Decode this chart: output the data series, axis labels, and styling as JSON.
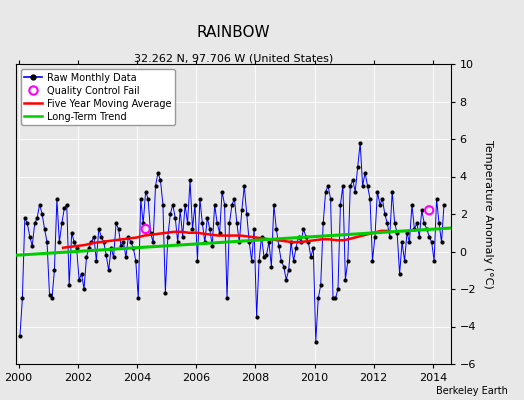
{
  "title": "RAINBOW",
  "subtitle": "32.262 N, 97.706 W (United States)",
  "ylabel": "Temperature Anomaly (°C)",
  "attribution": "Berkeley Earth",
  "xlim": [
    1999.9,
    2014.6
  ],
  "ylim": [
    -6,
    10
  ],
  "yticks": [
    -6,
    -4,
    -2,
    0,
    2,
    4,
    6,
    8,
    10
  ],
  "xticks": [
    2000,
    2002,
    2004,
    2006,
    2008,
    2010,
    2012,
    2014
  ],
  "bg_color": "#e8e8e8",
  "raw_color": "#0000ff",
  "ma_color": "#ff0000",
  "trend_color": "#00cc00",
  "qc_color": "#ff00ff",
  "title_fontsize": 11,
  "subtitle_fontsize": 8,
  "raw_monthly_data": [
    [
      2000.042,
      -4.5
    ],
    [
      2000.125,
      -2.5
    ],
    [
      2000.208,
      1.8
    ],
    [
      2000.292,
      1.5
    ],
    [
      2000.375,
      0.8
    ],
    [
      2000.458,
      0.3
    ],
    [
      2000.542,
      1.5
    ],
    [
      2000.625,
      1.8
    ],
    [
      2000.708,
      2.5
    ],
    [
      2000.792,
      2.0
    ],
    [
      2000.875,
      1.2
    ],
    [
      2000.958,
      0.5
    ],
    [
      2001.042,
      -2.3
    ],
    [
      2001.125,
      -2.5
    ],
    [
      2001.208,
      -1.0
    ],
    [
      2001.292,
      2.8
    ],
    [
      2001.375,
      0.5
    ],
    [
      2001.458,
      1.5
    ],
    [
      2001.542,
      2.3
    ],
    [
      2001.625,
      2.5
    ],
    [
      2001.708,
      -1.8
    ],
    [
      2001.792,
      1.0
    ],
    [
      2001.875,
      0.5
    ],
    [
      2001.958,
      0.2
    ],
    [
      2002.042,
      -1.5
    ],
    [
      2002.125,
      -1.2
    ],
    [
      2002.208,
      -2.0
    ],
    [
      2002.292,
      -0.3
    ],
    [
      2002.375,
      0.2
    ],
    [
      2002.458,
      0.5
    ],
    [
      2002.542,
      0.8
    ],
    [
      2002.625,
      -0.5
    ],
    [
      2002.708,
      1.2
    ],
    [
      2002.792,
      0.8
    ],
    [
      2002.875,
      0.5
    ],
    [
      2002.958,
      -0.2
    ],
    [
      2003.042,
      -1.0
    ],
    [
      2003.125,
      0.2
    ],
    [
      2003.208,
      -0.3
    ],
    [
      2003.292,
      1.5
    ],
    [
      2003.375,
      1.2
    ],
    [
      2003.458,
      0.3
    ],
    [
      2003.542,
      0.5
    ],
    [
      2003.625,
      -0.3
    ],
    [
      2003.708,
      0.8
    ],
    [
      2003.792,
      0.5
    ],
    [
      2003.875,
      0.2
    ],
    [
      2003.958,
      -0.5
    ],
    [
      2004.042,
      -2.5
    ],
    [
      2004.125,
      2.8
    ],
    [
      2004.208,
      1.5
    ],
    [
      2004.292,
      3.2
    ],
    [
      2004.375,
      2.8
    ],
    [
      2004.458,
      1.0
    ],
    [
      2004.542,
      0.5
    ],
    [
      2004.625,
      3.5
    ],
    [
      2004.708,
      4.2
    ],
    [
      2004.792,
      3.8
    ],
    [
      2004.875,
      2.5
    ],
    [
      2004.958,
      -2.2
    ],
    [
      2005.042,
      0.8
    ],
    [
      2005.125,
      2.0
    ],
    [
      2005.208,
      2.5
    ],
    [
      2005.292,
      1.8
    ],
    [
      2005.375,
      0.5
    ],
    [
      2005.458,
      2.2
    ],
    [
      2005.542,
      0.8
    ],
    [
      2005.625,
      2.5
    ],
    [
      2005.708,
      1.5
    ],
    [
      2005.792,
      3.8
    ],
    [
      2005.875,
      1.2
    ],
    [
      2005.958,
      2.5
    ],
    [
      2006.042,
      -0.5
    ],
    [
      2006.125,
      2.8
    ],
    [
      2006.208,
      1.5
    ],
    [
      2006.292,
      0.5
    ],
    [
      2006.375,
      1.8
    ],
    [
      2006.458,
      1.2
    ],
    [
      2006.542,
      0.3
    ],
    [
      2006.625,
      2.5
    ],
    [
      2006.708,
      1.5
    ],
    [
      2006.792,
      1.0
    ],
    [
      2006.875,
      3.2
    ],
    [
      2006.958,
      2.5
    ],
    [
      2007.042,
      -2.5
    ],
    [
      2007.125,
      1.5
    ],
    [
      2007.208,
      2.5
    ],
    [
      2007.292,
      2.8
    ],
    [
      2007.375,
      1.5
    ],
    [
      2007.458,
      0.5
    ],
    [
      2007.542,
      2.2
    ],
    [
      2007.625,
      3.5
    ],
    [
      2007.708,
      2.0
    ],
    [
      2007.792,
      0.5
    ],
    [
      2007.875,
      -0.5
    ],
    [
      2007.958,
      1.2
    ],
    [
      2008.042,
      -3.5
    ],
    [
      2008.125,
      -0.5
    ],
    [
      2008.208,
      0.8
    ],
    [
      2008.292,
      -0.3
    ],
    [
      2008.375,
      -0.2
    ],
    [
      2008.458,
      0.5
    ],
    [
      2008.542,
      -0.8
    ],
    [
      2008.625,
      2.5
    ],
    [
      2008.708,
      1.2
    ],
    [
      2008.792,
      0.3
    ],
    [
      2008.875,
      -0.5
    ],
    [
      2008.958,
      -0.8
    ],
    [
      2009.042,
      -1.5
    ],
    [
      2009.125,
      -1.0
    ],
    [
      2009.208,
      0.5
    ],
    [
      2009.292,
      -0.5
    ],
    [
      2009.375,
      0.2
    ],
    [
      2009.458,
      0.8
    ],
    [
      2009.542,
      0.5
    ],
    [
      2009.625,
      1.2
    ],
    [
      2009.708,
      0.8
    ],
    [
      2009.792,
      0.5
    ],
    [
      2009.875,
      -0.3
    ],
    [
      2009.958,
      0.2
    ],
    [
      2010.042,
      -4.8
    ],
    [
      2010.125,
      -2.5
    ],
    [
      2010.208,
      -1.8
    ],
    [
      2010.292,
      1.5
    ],
    [
      2010.375,
      3.2
    ],
    [
      2010.458,
      3.5
    ],
    [
      2010.542,
      2.8
    ],
    [
      2010.625,
      -2.5
    ],
    [
      2010.708,
      -2.5
    ],
    [
      2010.792,
      -2.0
    ],
    [
      2010.875,
      2.5
    ],
    [
      2010.958,
      3.5
    ],
    [
      2011.042,
      -1.5
    ],
    [
      2011.125,
      -0.5
    ],
    [
      2011.208,
      3.5
    ],
    [
      2011.292,
      3.8
    ],
    [
      2011.375,
      3.2
    ],
    [
      2011.458,
      4.5
    ],
    [
      2011.542,
      5.8
    ],
    [
      2011.625,
      3.5
    ],
    [
      2011.708,
      4.2
    ],
    [
      2011.792,
      3.5
    ],
    [
      2011.875,
      2.8
    ],
    [
      2011.958,
      -0.5
    ],
    [
      2012.042,
      0.8
    ],
    [
      2012.125,
      3.2
    ],
    [
      2012.208,
      2.5
    ],
    [
      2012.292,
      2.8
    ],
    [
      2012.375,
      2.0
    ],
    [
      2012.458,
      1.5
    ],
    [
      2012.542,
      0.8
    ],
    [
      2012.625,
      3.2
    ],
    [
      2012.708,
      1.5
    ],
    [
      2012.792,
      1.0
    ],
    [
      2012.875,
      -1.2
    ],
    [
      2012.958,
      0.5
    ],
    [
      2013.042,
      -0.5
    ],
    [
      2013.125,
      1.0
    ],
    [
      2013.208,
      0.5
    ],
    [
      2013.292,
      2.5
    ],
    [
      2013.375,
      1.2
    ],
    [
      2013.458,
      1.5
    ],
    [
      2013.542,
      0.8
    ],
    [
      2013.625,
      2.2
    ],
    [
      2013.708,
      1.5
    ],
    [
      2013.792,
      1.2
    ],
    [
      2013.875,
      0.8
    ],
    [
      2013.958,
      0.5
    ],
    [
      2014.042,
      -0.5
    ],
    [
      2014.125,
      2.8
    ],
    [
      2014.208,
      1.5
    ],
    [
      2014.292,
      0.5
    ],
    [
      2014.375,
      2.5
    ]
  ],
  "qc_fail_points": [
    [
      2004.292,
      1.2
    ],
    [
      2013.875,
      2.2
    ]
  ],
  "ma_data": [
    [
      2001.5,
      0.2
    ],
    [
      2001.75,
      0.25
    ],
    [
      2002.0,
      0.3
    ],
    [
      2002.25,
      0.35
    ],
    [
      2002.5,
      0.45
    ],
    [
      2002.75,
      0.5
    ],
    [
      2003.0,
      0.55
    ],
    [
      2003.25,
      0.6
    ],
    [
      2003.5,
      0.65
    ],
    [
      2003.75,
      0.7
    ],
    [
      2004.0,
      0.75
    ],
    [
      2004.25,
      0.85
    ],
    [
      2004.5,
      0.9
    ],
    [
      2004.75,
      0.95
    ],
    [
      2005.0,
      1.0
    ],
    [
      2005.25,
      1.05
    ],
    [
      2005.5,
      1.05
    ],
    [
      2005.75,
      1.0
    ],
    [
      2006.0,
      1.0
    ],
    [
      2006.25,
      0.95
    ],
    [
      2006.5,
      0.9
    ],
    [
      2006.75,
      0.85
    ],
    [
      2007.0,
      0.85
    ],
    [
      2007.25,
      0.85
    ],
    [
      2007.5,
      0.85
    ],
    [
      2007.75,
      0.8
    ],
    [
      2008.0,
      0.75
    ],
    [
      2008.25,
      0.7
    ],
    [
      2008.5,
      0.65
    ],
    [
      2008.75,
      0.6
    ],
    [
      2009.0,
      0.55
    ],
    [
      2009.25,
      0.5
    ],
    [
      2009.5,
      0.5
    ],
    [
      2009.75,
      0.55
    ],
    [
      2010.0,
      0.6
    ],
    [
      2010.25,
      0.65
    ],
    [
      2010.5,
      0.65
    ],
    [
      2010.75,
      0.6
    ],
    [
      2011.0,
      0.6
    ],
    [
      2011.25,
      0.7
    ],
    [
      2011.5,
      0.8
    ],
    [
      2011.75,
      0.9
    ],
    [
      2012.0,
      1.0
    ],
    [
      2012.25,
      1.1
    ],
    [
      2012.5,
      1.1
    ]
  ],
  "trend_data": [
    [
      1999.9,
      -0.2
    ],
    [
      2014.6,
      1.25
    ]
  ]
}
